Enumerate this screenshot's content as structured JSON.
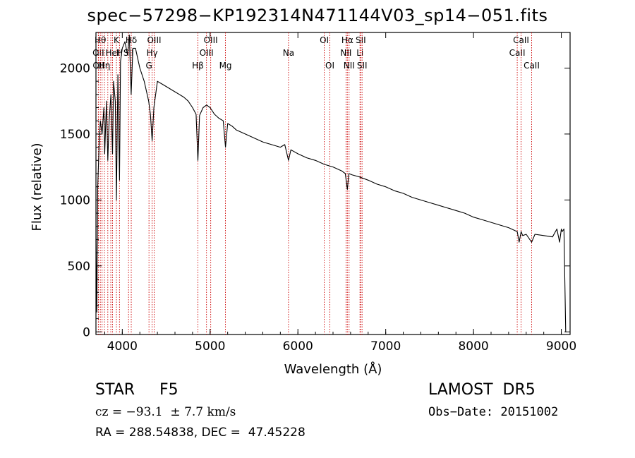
{
  "chart_data": {
    "type": "line",
    "title": "spec−57298−KP192314N471144V03_sp14−051.fits",
    "xlabel": "Wavelength (Å)",
    "ylabel": "Flux (relative)",
    "xlim": [
      3700,
      9100
    ],
    "ylim": [
      -20,
      2270
    ],
    "xticks": [
      4000,
      5000,
      6000,
      7000,
      8000,
      9000
    ],
    "yticks": [
      0,
      500,
      1000,
      1500,
      2000
    ],
    "line_color": "#000000",
    "marker_color": "#cc0000",
    "grid": false,
    "series": [
      {
        "x": [
          3700,
          3710,
          3720,
          3735,
          3750,
          3770,
          3790,
          3800,
          3820,
          3835,
          3850,
          3870,
          3889,
          3900,
          3920,
          3933,
          3950,
          3968,
          3980,
          4000,
          4030,
          4060,
          4080,
          4101,
          4120,
          4150,
          4200,
          4250,
          4300,
          4320,
          4340,
          4360,
          4400,
          4450,
          4500,
          4550,
          4600,
          4650,
          4700,
          4750,
          4800,
          4840,
          4861,
          4880,
          4920,
          4960,
          5000,
          5050,
          5100,
          5150,
          5175,
          5200,
          5250,
          5300,
          5400,
          5500,
          5600,
          5700,
          5800,
          5850,
          5893,
          5920,
          6000,
          6100,
          6200,
          6300,
          6400,
          6500,
          6540,
          6563,
          6580,
          6620,
          6700,
          6800,
          6900,
          7000,
          7100,
          7200,
          7300,
          7400,
          7500,
          7600,
          7700,
          7800,
          7900,
          8000,
          8100,
          8200,
          8300,
          8400,
          8498,
          8520,
          8542,
          8560,
          8600,
          8662,
          8700,
          8800,
          8900,
          8950,
          8980,
          9000,
          9010,
          9030,
          9050,
          9055
        ],
        "y": [
          700,
          150,
          1100,
          1400,
          1600,
          1500,
          1700,
          1350,
          1750,
          1300,
          1600,
          1800,
          1350,
          1900,
          1750,
          1000,
          1950,
          1150,
          2050,
          2150,
          2200,
          2100,
          2250,
          1800,
          2150,
          2150,
          2000,
          1900,
          1750,
          1650,
          1450,
          1700,
          1900,
          1880,
          1860,
          1840,
          1820,
          1800,
          1780,
          1750,
          1700,
          1650,
          1300,
          1640,
          1700,
          1720,
          1700,
          1650,
          1620,
          1600,
          1400,
          1580,
          1560,
          1530,
          1500,
          1470,
          1440,
          1420,
          1400,
          1420,
          1300,
          1380,
          1350,
          1320,
          1300,
          1270,
          1250,
          1220,
          1200,
          1080,
          1200,
          1190,
          1175,
          1150,
          1120,
          1100,
          1070,
          1050,
          1020,
          1000,
          980,
          960,
          940,
          920,
          900,
          870,
          850,
          830,
          810,
          790,
          760,
          680,
          760,
          730,
          740,
          680,
          740,
          730,
          720,
          780,
          680,
          780,
          760,
          780,
          0,
          0
        ]
      }
    ],
    "lines": [
      {
        "wl": 3727,
        "label": "OII",
        "row": 1
      },
      {
        "wl": 3729,
        "label": "OII",
        "row": 2
      },
      {
        "wl": 3750,
        "label": "Hθ",
        "row": 0
      },
      {
        "wl": 3770,
        "label": "",
        "row": -1
      },
      {
        "wl": 3797,
        "label": "Hη",
        "row": 2
      },
      {
        "wl": 3835,
        "label": "",
        "row": -1
      },
      {
        "wl": 3869,
        "label": "",
        "row": -1
      },
      {
        "wl": 3889,
        "label": "HeI",
        "row": 1
      },
      {
        "wl": 3933,
        "label": "K",
        "row": 0
      },
      {
        "wl": 3968,
        "label": "H",
        "row": 1
      },
      {
        "wl": 4071,
        "label": "SII",
        "row": 1
      },
      {
        "wl": 4102,
        "label": "Hδ",
        "row": 0
      },
      {
        "wl": 4304,
        "label": "G",
        "row": 2
      },
      {
        "wl": 4340,
        "label": "Hγ",
        "row": 1
      },
      {
        "wl": 4363,
        "label": "OIII",
        "row": 0
      },
      {
        "wl": 4861,
        "label": "Hβ",
        "row": 2
      },
      {
        "wl": 4959,
        "label": "OIII",
        "row": 1
      },
      {
        "wl": 5007,
        "label": "OIII",
        "row": 0
      },
      {
        "wl": 5175,
        "label": "Mg",
        "row": 2
      },
      {
        "wl": 5893,
        "label": "Na",
        "row": 1
      },
      {
        "wl": 6300,
        "label": "OI",
        "row": 0
      },
      {
        "wl": 6364,
        "label": "OI",
        "row": 2
      },
      {
        "wl": 6548,
        "label": "NII",
        "row": 1
      },
      {
        "wl": 6563,
        "label": "Hα",
        "row": 0
      },
      {
        "wl": 6583,
        "label": "NII",
        "row": 2
      },
      {
        "wl": 6707,
        "label": "Li",
        "row": 1
      },
      {
        "wl": 6716,
        "label": "SII",
        "row": 0
      },
      {
        "wl": 6731,
        "label": "SII",
        "row": 2
      },
      {
        "wl": 8498,
        "label": "CaII",
        "row": 1
      },
      {
        "wl": 8542,
        "label": "CaII",
        "row": 0
      },
      {
        "wl": 8662,
        "label": "CaII",
        "row": 2
      }
    ]
  },
  "info": {
    "obj_class": "STAR     F5",
    "survey": "LAMOST  DR5",
    "cz": "cz = −93.1  ± 7.7 km/s",
    "obs_date": "Obs−Date: 20151002",
    "radec": "RA = 288.54838, DEC =  47.45228"
  }
}
